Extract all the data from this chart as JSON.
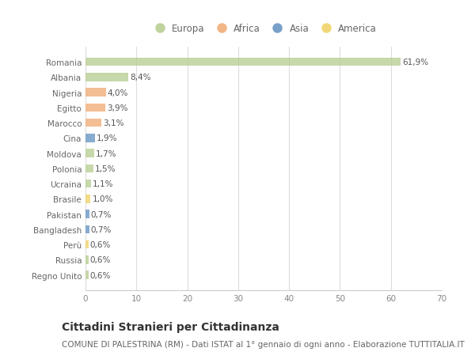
{
  "countries": [
    "Romania",
    "Albania",
    "Nigeria",
    "Egitto",
    "Marocco",
    "Cina",
    "Moldova",
    "Polonia",
    "Ucraina",
    "Brasile",
    "Pakistan",
    "Bangladesh",
    "Perù",
    "Russia",
    "Regno Unito"
  ],
  "values": [
    61.9,
    8.4,
    4.0,
    3.9,
    3.1,
    1.9,
    1.7,
    1.5,
    1.1,
    1.0,
    0.7,
    0.7,
    0.6,
    0.6,
    0.6
  ],
  "labels": [
    "61,9%",
    "8,4%",
    "4,0%",
    "3,9%",
    "3,1%",
    "1,9%",
    "1,7%",
    "1,5%",
    "1,1%",
    "1,0%",
    "0,7%",
    "0,7%",
    "0,6%",
    "0,6%",
    "0,6%"
  ],
  "categories": [
    "Europa",
    "Africa",
    "Asia",
    "America"
  ],
  "continent": [
    "Europa",
    "Europa",
    "Africa",
    "Africa",
    "Africa",
    "Asia",
    "Europa",
    "Europa",
    "Europa",
    "America",
    "Asia",
    "Asia",
    "America",
    "Europa",
    "Europa"
  ],
  "colors": {
    "Europa": "#b5cc8e",
    "Africa": "#f0a870",
    "Asia": "#6090c0",
    "America": "#f0d060"
  },
  "background_color": "#ffffff",
  "xlim": [
    0,
    70
  ],
  "xticks": [
    0,
    10,
    20,
    30,
    40,
    50,
    60,
    70
  ],
  "title": "Cittadini Stranieri per Cittadinanza",
  "subtitle": "COMUNE DI PALESTRINA (RM) - Dati ISTAT al 1° gennaio di ogni anno - Elaborazione TUTTITALIA.IT",
  "title_fontsize": 10,
  "subtitle_fontsize": 7.5,
  "label_fontsize": 7.5,
  "tick_fontsize": 7.5,
  "legend_fontsize": 8.5
}
